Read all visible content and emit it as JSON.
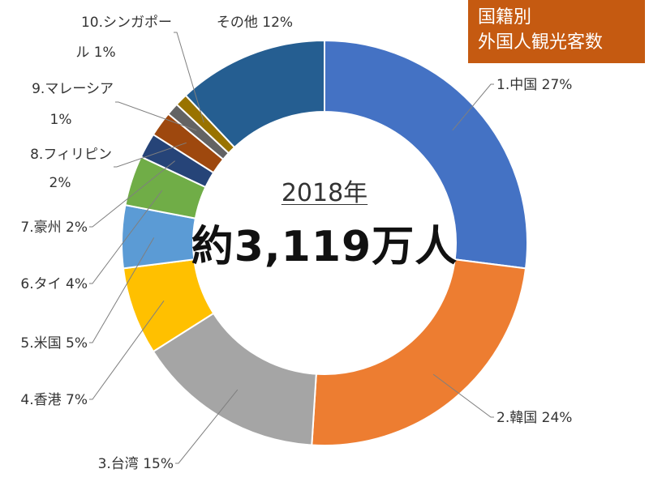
{
  "title_box": {
    "line1": "国籍別",
    "line2": "外国人観光客数"
  },
  "center": {
    "year": "2018年",
    "total": "約3,119万人"
  },
  "colors": {
    "title_bg": "#c55a11"
  },
  "chart_data": {
    "type": "pie",
    "title": "国籍別 外国人観光客数",
    "slices": [
      {
        "label": "1.中国 27%",
        "value": 27,
        "color": "#4472c4"
      },
      {
        "label": "2.韓国 24%",
        "value": 24,
        "color": "#ed7d31"
      },
      {
        "label": "3.台湾 15%",
        "value": 15,
        "color": "#a5a5a5"
      },
      {
        "label": "4.香港 7%",
        "value": 7,
        "color": "#ffc000"
      },
      {
        "label": "5.米国 5%",
        "value": 5,
        "color": "#5b9bd5"
      },
      {
        "label": "6.タイ 4%",
        "value": 4,
        "color": "#70ad47"
      },
      {
        "label": "7.豪州 2%",
        "value": 2,
        "color": "#264478"
      },
      {
        "label": "8.フィリピン 2%",
        "value": 2,
        "color": "#9e480e"
      },
      {
        "label": "9.マレーシア 1%",
        "value": 1,
        "color": "#636363"
      },
      {
        "label": "10.シンガポール 1%",
        "value": 1,
        "color": "#997300"
      },
      {
        "label": "その他 12%",
        "value": 12,
        "color": "#255e91"
      }
    ]
  }
}
